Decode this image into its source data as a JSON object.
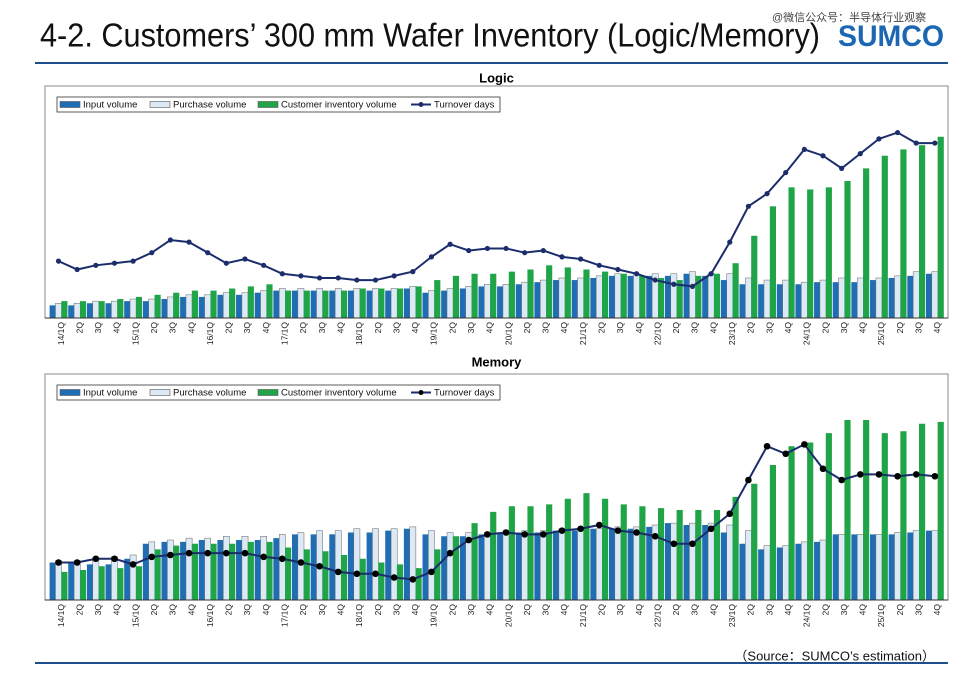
{
  "header": {
    "title": "4-2. Customers’ 300 mm Wafer Inventory (Logic/Memory)",
    "logo": "SUMCO",
    "watermark": "@微信公众号：半导体行业观察"
  },
  "footer": {
    "source": "（Source：SUMCO’s estimation）"
  },
  "chart_data": [
    {
      "type": "bar",
      "title": "Logic",
      "categories": [
        "14/1Q",
        "2Q",
        "3Q",
        "4Q",
        "15/1Q",
        "2Q",
        "3Q",
        "4Q",
        "16/1Q",
        "2Q",
        "3Q",
        "4Q",
        "17/1Q",
        "2Q",
        "3Q",
        "4Q",
        "18/1Q",
        "2Q",
        "3Q",
        "4Q",
        "19/1Q",
        "2Q",
        "3Q",
        "4Q",
        "20/1Q",
        "2Q",
        "3Q",
        "4Q",
        "21/1Q",
        "2Q",
        "3Q",
        "4Q",
        "22/1Q",
        "2Q",
        "3Q",
        "4Q",
        "23/1Q",
        "2Q",
        "3Q",
        "4Q",
        "24/1Q",
        "2Q",
        "3Q",
        "4Q",
        "25/1Q",
        "2Q",
        "3Q",
        "4Q"
      ],
      "series": [
        {
          "name": "Input volume",
          "color": "#1f6db4",
          "values": [
            6,
            6,
            7,
            7,
            8,
            8,
            9,
            10,
            10,
            11,
            11,
            12,
            13,
            13,
            13,
            13,
            13,
            13,
            13,
            14,
            12,
            13,
            14,
            15,
            15,
            16,
            17,
            18,
            18,
            19,
            20,
            20,
            20,
            20,
            21,
            20,
            18,
            16,
            16,
            16,
            16,
            17,
            17,
            17,
            18,
            19,
            20,
            21
          ]
        },
        {
          "name": "Purchase volume",
          "color": "#dde9f5",
          "values": [
            7,
            7,
            8,
            8,
            9,
            9,
            10,
            11,
            11,
            12,
            12,
            13,
            14,
            14,
            14,
            14,
            14,
            14,
            14,
            15,
            13,
            14,
            15,
            16,
            16,
            17,
            18,
            19,
            19,
            20,
            21,
            21,
            21,
            21,
            22,
            21,
            21,
            19,
            18,
            18,
            17,
            18,
            19,
            19,
            19,
            20,
            22,
            22
          ]
        },
        {
          "name": "Customer inventory volume",
          "color": "#1fa448",
          "values": [
            8,
            8,
            8,
            9,
            10,
            11,
            12,
            13,
            13,
            14,
            15,
            16,
            13,
            13,
            13,
            13,
            14,
            14,
            14,
            15,
            18,
            20,
            21,
            21,
            22,
            23,
            25,
            24,
            23,
            22,
            21,
            20,
            19,
            18,
            20,
            21,
            26,
            39,
            53,
            62,
            61,
            62,
            65,
            71,
            77,
            80,
            82,
            86
          ]
        },
        {
          "name": "Turnover days",
          "type": "line",
          "color": "#1b2d6b",
          "marker": "#1b2d6b",
          "values": [
            27,
            23,
            25,
            26,
            27,
            31,
            37,
            36,
            31,
            26,
            28,
            25,
            21,
            20,
            19,
            19,
            18,
            18,
            20,
            22,
            29,
            35,
            32,
            33,
            33,
            31,
            32,
            29,
            28,
            25,
            23,
            21,
            18,
            16,
            15,
            21,
            36,
            53,
            59,
            69,
            80,
            77,
            71,
            78,
            85,
            88,
            83,
            83
          ]
        }
      ]
    },
    {
      "type": "bar",
      "title": "Memory",
      "categories": [
        "14/1Q",
        "2Q",
        "3Q",
        "4Q",
        "15/1Q",
        "2Q",
        "3Q",
        "4Q",
        "16/1Q",
        "2Q",
        "3Q",
        "4Q",
        "17/1Q",
        "2Q",
        "3Q",
        "4Q",
        "18/1Q",
        "2Q",
        "3Q",
        "4Q",
        "19/1Q",
        "2Q",
        "3Q",
        "4Q",
        "20/1Q",
        "2Q",
        "3Q",
        "4Q",
        "21/1Q",
        "2Q",
        "3Q",
        "4Q",
        "22/1Q",
        "2Q",
        "3Q",
        "4Q",
        "23/1Q",
        "2Q",
        "3Q",
        "4Q",
        "24/1Q",
        "2Q",
        "3Q",
        "4Q",
        "25/1Q",
        "2Q",
        "3Q",
        "4Q"
      ],
      "series": [
        {
          "name": "Input volume",
          "color": "#1f6db4",
          "values": [
            20,
            20,
            19,
            19,
            22,
            30,
            31,
            31,
            32,
            32,
            32,
            32,
            33,
            35,
            35,
            35,
            36,
            36,
            37,
            38,
            35,
            34,
            34,
            35,
            36,
            36,
            36,
            37,
            37,
            38,
            38,
            38,
            39,
            41,
            40,
            40,
            36,
            30,
            27,
            28,
            30,
            31,
            35,
            35,
            35,
            35,
            36,
            37
          ]
        },
        {
          "name": "Purchase volume",
          "color": "#dde9f5",
          "values": [
            21,
            21,
            22,
            23,
            24,
            31,
            32,
            33,
            33,
            34,
            34,
            34,
            35,
            36,
            37,
            37,
            38,
            38,
            38,
            39,
            37,
            36,
            36,
            36,
            37,
            37,
            37,
            38,
            38,
            38,
            39,
            39,
            40,
            41,
            41,
            41,
            40,
            37,
            29,
            29,
            31,
            32,
            35,
            35,
            35,
            36,
            37,
            37
          ]
        },
        {
          "name": "Customer inventory volume",
          "color": "#1fa448",
          "values": [
            15,
            16,
            18,
            17,
            18,
            27,
            29,
            30,
            30,
            30,
            31,
            31,
            28,
            27,
            26,
            24,
            22,
            20,
            19,
            17,
            27,
            34,
            41,
            47,
            50,
            50,
            51,
            54,
            57,
            54,
            51,
            50,
            49,
            48,
            48,
            48,
            55,
            62,
            72,
            82,
            84,
            89,
            96,
            96,
            89,
            90,
            94,
            95
          ]
        },
        {
          "name": "Turnover days",
          "type": "line",
          "color": "#1b2d6b",
          "marker": "#000000",
          "values": [
            20,
            20,
            22,
            22,
            19,
            23,
            24,
            25,
            25,
            25,
            25,
            23,
            22,
            20,
            18,
            15,
            14,
            14,
            12,
            11,
            15,
            25,
            32,
            35,
            36,
            35,
            35,
            37,
            38,
            40,
            37,
            36,
            34,
            30,
            30,
            38,
            46,
            64,
            82,
            78,
            83,
            70,
            64,
            67,
            67,
            66,
            67,
            66
          ]
        }
      ]
    }
  ]
}
